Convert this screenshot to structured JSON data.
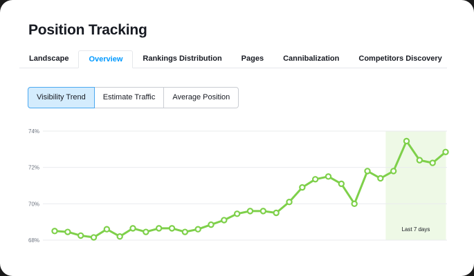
{
  "app": {
    "title": "Position Tracking"
  },
  "tabs": [
    {
      "label": "Landscape",
      "active": false
    },
    {
      "label": "Overview",
      "active": true
    },
    {
      "label": "Rankings Distribution",
      "active": false
    },
    {
      "label": "Pages",
      "active": false
    },
    {
      "label": "Cannibalization",
      "active": false
    },
    {
      "label": "Competitors Discovery",
      "active": false
    }
  ],
  "metric_toggle": {
    "options": [
      "Visibility Trend",
      "Estimate Traffic",
      "Average Position"
    ],
    "selected": "Visibility Trend"
  },
  "colors": {
    "accent": "#0099ff",
    "line": "#7ed04a",
    "highlight": "#eef9e6",
    "grid": "#e9ebee"
  },
  "chart_data": {
    "type": "line",
    "yunit": "%",
    "ylim": [
      68,
      74
    ],
    "yticks": [
      "74%",
      "72%",
      "70%",
      "68%"
    ],
    "grid": true,
    "series": [
      {
        "values": [
          68.5,
          68.45,
          68.25,
          68.15,
          68.6,
          68.2,
          68.65,
          68.45,
          68.65,
          68.65,
          68.45,
          68.6,
          68.85,
          69.1,
          69.45,
          69.6,
          69.6,
          69.5,
          70.1,
          70.9,
          71.35,
          71.5,
          71.1,
          70.0,
          71.8,
          71.4,
          71.8,
          73.45,
          72.4,
          72.25,
          72.85
        ]
      }
    ],
    "highlight": {
      "label": "Last 7 days",
      "from_index": 26,
      "to_index": 30
    }
  }
}
